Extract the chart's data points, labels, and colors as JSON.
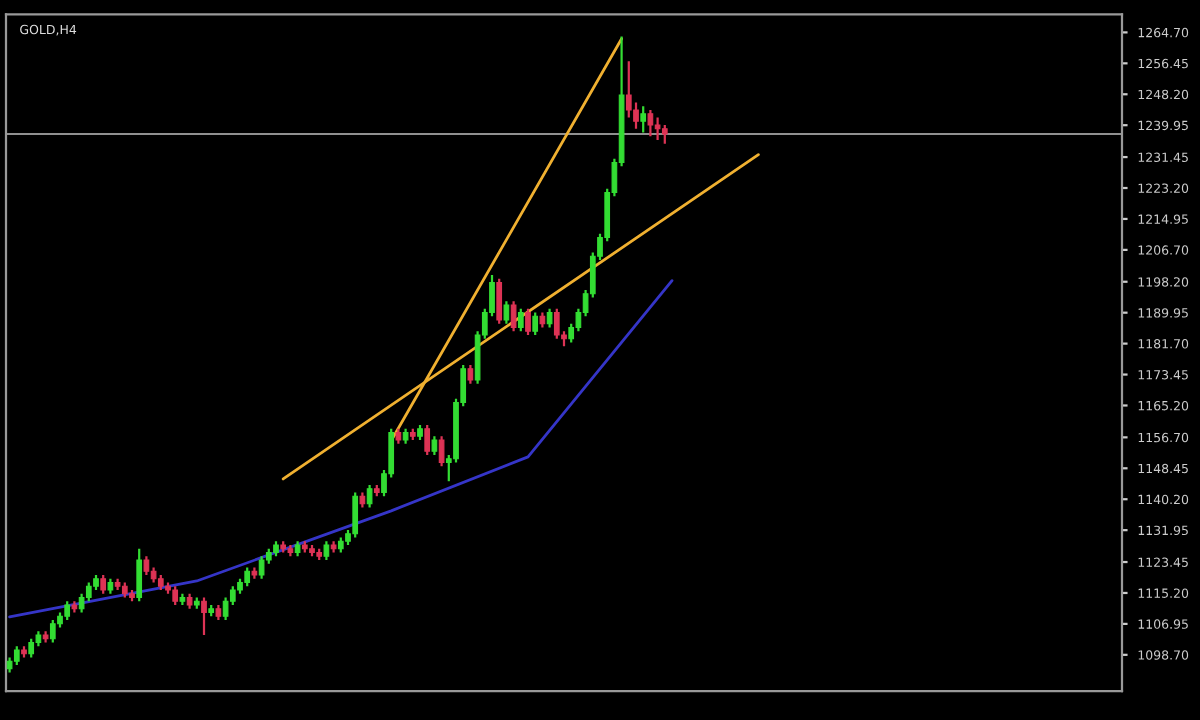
{
  "chart_data": {
    "type": "candlestick",
    "title": "GOLD,H4",
    "categories": [
      null,
      null,
      null,
      null,
      null,
      null,
      null,
      null,
      null,
      null,
      null,
      null,
      null,
      null,
      null,
      null,
      null,
      null,
      null,
      null,
      null,
      null,
      null,
      null,
      null,
      null,
      null,
      null,
      null,
      null,
      null,
      null,
      null,
      null,
      null,
      null,
      null,
      null,
      null,
      null,
      null,
      null,
      null,
      null,
      null,
      null,
      null,
      null,
      null,
      null,
      null,
      null,
      null,
      null,
      null,
      null,
      null,
      null,
      null,
      null,
      null,
      null,
      null,
      null,
      null,
      null,
      null,
      null,
      null,
      null,
      null,
      null,
      null,
      null,
      null,
      null,
      null,
      null,
      null,
      null,
      null,
      null,
      null,
      null,
      null,
      null,
      null,
      null,
      null,
      null,
      null,
      null,
      null,
      null,
      null,
      null,
      null,
      null,
      null,
      null,
      null,
      null,
      null,
      null,
      null,
      null,
      null,
      null,
      null,
      null,
      null,
      null,
      null,
      null,
      null,
      null,
      null,
      null,
      null,
      null,
      null,
      null,
      null,
      null,
      null,
      null,
      null,
      null,
      null,
      null,
      null,
      null,
      null,
      null,
      null,
      null,
      null,
      null,
      null,
      null,
      null,
      null,
      null,
      null,
      null,
      null,
      null,
      null,
      null,
      null,
      null,
      null,
      null,
      null,
      null
    ],
    "ohlc": [
      [
        1095,
        1098,
        1094,
        1097
      ],
      [
        1097,
        1101,
        1096,
        1100
      ],
      [
        1100,
        1101,
        1098,
        1099
      ],
      [
        1099,
        1103,
        1098,
        1102
      ],
      [
        1102,
        1105,
        1101,
        1104
      ],
      [
        1104,
        1105,
        1102,
        1103
      ],
      [
        1103,
        1108,
        1102,
        1107
      ],
      [
        1107,
        1110,
        1106,
        1109
      ],
      [
        1109,
        1113,
        1108,
        1112
      ],
      [
        1112,
        1113,
        1110,
        1111
      ],
      [
        1111,
        1115,
        1110,
        1114
      ],
      [
        1114,
        1118,
        1113,
        1117
      ],
      [
        1117,
        1120,
        1116,
        1119
      ],
      [
        1119,
        1120,
        1115,
        1116
      ],
      [
        1116,
        1119,
        1115,
        1118
      ],
      [
        1118,
        1119,
        1116,
        1117
      ],
      [
        1117,
        1118,
        1114,
        1115
      ],
      [
        1115,
        1116,
        1113,
        1114
      ],
      [
        1114,
        1127,
        1113,
        1124
      ],
      [
        1124,
        1125,
        1120,
        1121
      ],
      [
        1121,
        1122,
        1118,
        1119
      ],
      [
        1119,
        1120,
        1116,
        1117
      ],
      [
        1117,
        1118,
        1115,
        1116
      ],
      [
        1116,
        1117,
        1112,
        1113
      ],
      [
        1113,
        1115,
        1112,
        1114
      ],
      [
        1114,
        1115,
        1111,
        1112
      ],
      [
        1112,
        1114,
        1111,
        1113
      ],
      [
        1113,
        1114,
        1104,
        1110
      ],
      [
        1110,
        1112,
        1109,
        1111
      ],
      [
        1111,
        1112,
        1108,
        1109
      ],
      [
        1109,
        1114,
        1108,
        1113
      ],
      [
        1113,
        1117,
        1112,
        1116
      ],
      [
        1116,
        1119,
        1115,
        1118
      ],
      [
        1118,
        1122,
        1117,
        1121
      ],
      [
        1121,
        1122,
        1119,
        1120
      ],
      [
        1120,
        1125,
        1119,
        1124
      ],
      [
        1124,
        1127,
        1123,
        1126
      ],
      [
        1126,
        1129,
        1125,
        1128
      ],
      [
        1128,
        1129,
        1126,
        1127
      ],
      [
        1127,
        1128,
        1125,
        1126
      ],
      [
        1126,
        1129,
        1125,
        1128
      ],
      [
        1128,
        1129,
        1126,
        1127
      ],
      [
        1127,
        1128,
        1125,
        1126
      ],
      [
        1126,
        1127,
        1124,
        1125
      ],
      [
        1125,
        1129,
        1124,
        1128
      ],
      [
        1128,
        1129,
        1126,
        1127
      ],
      [
        1127,
        1130,
        1126,
        1129
      ],
      [
        1129,
        1132,
        1128,
        1131
      ],
      [
        1131,
        1142,
        1130,
        1141
      ],
      [
        1141,
        1142,
        1138,
        1139
      ],
      [
        1139,
        1144,
        1138,
        1143
      ],
      [
        1143,
        1144,
        1141,
        1142
      ],
      [
        1142,
        1148,
        1141,
        1147
      ],
      [
        1147,
        1159,
        1146,
        1158
      ],
      [
        1158,
        1159,
        1155,
        1156
      ],
      [
        1156,
        1159,
        1155,
        1158
      ],
      [
        1158,
        1159,
        1156,
        1157
      ],
      [
        1157,
        1160,
        1156,
        1159
      ],
      [
        1159,
        1160,
        1152,
        1153
      ],
      [
        1153,
        1157,
        1152,
        1156
      ],
      [
        1156,
        1157,
        1149,
        1150
      ],
      [
        1150,
        1152,
        1145,
        1151
      ],
      [
        1151,
        1167,
        1150,
        1166
      ],
      [
        1166,
        1176,
        1165,
        1175
      ],
      [
        1175,
        1176,
        1171,
        1172
      ],
      [
        1172,
        1185,
        1171,
        1184
      ],
      [
        1184,
        1191,
        1183,
        1190
      ],
      [
        1190,
        1200,
        1189,
        1198
      ],
      [
        1198,
        1199,
        1187,
        1188
      ],
      [
        1188,
        1193,
        1187,
        1192
      ],
      [
        1192,
        1193,
        1185,
        1186
      ],
      [
        1186,
        1191,
        1185,
        1190
      ],
      [
        1190,
        1191,
        1184,
        1185
      ],
      [
        1185,
        1190,
        1184,
        1189
      ],
      [
        1189,
        1190,
        1186,
        1187
      ],
      [
        1187,
        1191,
        1186,
        1190
      ],
      [
        1190,
        1191,
        1183,
        1184
      ],
      [
        1184,
        1185,
        1181,
        1183
      ],
      [
        1183,
        1187,
        1182,
        1186
      ],
      [
        1186,
        1191,
        1185,
        1190
      ],
      [
        1190,
        1196,
        1189,
        1195
      ],
      [
        1195,
        1206,
        1194,
        1205
      ],
      [
        1205,
        1211,
        1204,
        1210
      ],
      [
        1210,
        1223,
        1209,
        1222
      ],
      [
        1222,
        1231,
        1221,
        1230
      ],
      [
        1230,
        1263.6,
        1229,
        1248
      ],
      [
        1248,
        1257,
        1242,
        1244
      ],
      [
        1244,
        1246,
        1239,
        1241
      ],
      [
        1241,
        1245,
        1238,
        1243
      ],
      [
        1243,
        1244,
        1237,
        1240
      ],
      [
        1240,
        1242,
        1236,
        1239
      ],
      [
        1239,
        1240,
        1235,
        1237.6
      ],
      null,
      null,
      null,
      null,
      null,
      null,
      null,
      null,
      null,
      null,
      null,
      null,
      null,
      null,
      null,
      null,
      null,
      null,
      null,
      null,
      null,
      null,
      null,
      null,
      null,
      null,
      null,
      null,
      null,
      null,
      null,
      null,
      null,
      null,
      null,
      null,
      null,
      null,
      null,
      null,
      null,
      null,
      null,
      null,
      null,
      null,
      null,
      null,
      null,
      null,
      null,
      null,
      null,
      null,
      null,
      null,
      null,
      null,
      null,
      null,
      null,
      null,
      null
    ],
    "colors": [
      "#33dd33",
      "#33dd33",
      "#dd3355",
      "#33dd33",
      "#33dd33",
      "#dd3355",
      "#33dd33",
      "#33dd33",
      "#33dd33",
      "#dd3355",
      "#33dd33",
      "#33dd33",
      "#33dd33",
      "#dd3355",
      "#33dd33",
      "#dd3355",
      "#dd3355",
      "#dd3355",
      "#33dd33",
      "#dd3355",
      "#dd3355",
      "#dd3355",
      "#dd3355",
      "#dd3355",
      "#33dd33",
      "#dd3355",
      "#33dd33",
      "#dd3355",
      "#33dd33",
      "#dd3355",
      "#33dd33",
      "#33dd33",
      "#33dd33",
      "#33dd33",
      "#dd3355",
      "#33dd33",
      "#33dd33",
      "#33dd33",
      "#dd3355",
      "#dd3355",
      "#33dd33",
      "#dd3355",
      "#dd3355",
      "#dd3355",
      "#33dd33",
      "#dd3355",
      "#33dd33",
      "#33dd33",
      "#33dd33",
      "#dd3355",
      "#33dd33",
      "#dd3355",
      "#33dd33",
      "#33dd33",
      "#dd3355",
      "#33dd33",
      "#dd3355",
      "#33dd33",
      "#dd3355",
      "#33dd33",
      "#dd3355",
      "#33dd33",
      "#33dd33",
      "#33dd33",
      "#dd3355",
      "#33dd33",
      "#33dd33",
      "#33dd33",
      "#dd3355",
      "#33dd33",
      "#dd3355",
      "#33dd33",
      "#dd3355",
      "#33dd33",
      "#dd3355",
      "#33dd33",
      "#dd3355",
      "#dd3355",
      "#33dd33",
      "#33dd33",
      "#33dd33",
      "#33dd33",
      "#33dd33",
      "#33dd33",
      "#33dd33",
      "#33dd33",
      "#dd3355",
      "#dd3355",
      "#33dd33",
      "#dd3355",
      "#dd3355",
      "#dd3355",
      null,
      null,
      null,
      null,
      null,
      null,
      null,
      null,
      null,
      null,
      null,
      null,
      null,
      null,
      null,
      null,
      null,
      null,
      null,
      null,
      null,
      null,
      null,
      null,
      null,
      null,
      null,
      null,
      null,
      null,
      null,
      null,
      null,
      null,
      null,
      null,
      null,
      null,
      null,
      null,
      null,
      null,
      null,
      null,
      null,
      null,
      null,
      null,
      null,
      null,
      null,
      null,
      null,
      null,
      null,
      null,
      null,
      null,
      null,
      null,
      null,
      null,
      null
    ],
    "series": [
      {
        "type": "line",
        "color": "#f0b030",
        "values": [
          null,
          null,
          null,
          null,
          null,
          null,
          null,
          null,
          null,
          null,
          null,
          null,
          null,
          null,
          null,
          null,
          null,
          null,
          null,
          null,
          null,
          null,
          null,
          null,
          null,
          null,
          null,
          null,
          null,
          null,
          null,
          null,
          null,
          null,
          null,
          null,
          null,
          null,
          null,
          null,
          null,
          null,
          null,
          null,
          null,
          null,
          null,
          null,
          null,
          null,
          null,
          null,
          null,
          1155.8,
          null,
          null,
          null,
          null,
          null,
          null,
          null,
          null,
          null,
          null,
          null,
          null,
          null,
          null,
          null,
          null,
          null,
          null,
          null,
          null,
          null,
          null,
          null,
          null,
          null,
          null,
          null,
          null,
          null,
          null,
          null,
          1263.0,
          null,
          null,
          null,
          null,
          null,
          null,
          null,
          null,
          null,
          null,
          null,
          null,
          null,
          null,
          null,
          null,
          null,
          null,
          null,
          null,
          null,
          null,
          null,
          null,
          null,
          null,
          null,
          null,
          null,
          null,
          null,
          null,
          null,
          null,
          null,
          null,
          null,
          null,
          null,
          null,
          null,
          null,
          null,
          null,
          null,
          null,
          null,
          null,
          null,
          null,
          null,
          null,
          null,
          null,
          null,
          null,
          null,
          null,
          null,
          null,
          null,
          null,
          null,
          null,
          null,
          null,
          null,
          null,
          null
        ]
      },
      {
        "type": "line",
        "color": "#f0b030",
        "values": [
          null,
          null,
          null,
          null,
          null,
          null,
          null,
          null,
          null,
          null,
          null,
          null,
          null,
          null,
          null,
          null,
          null,
          null,
          null,
          null,
          null,
          null,
          null,
          null,
          null,
          null,
          null,
          null,
          null,
          null,
          null,
          null,
          null,
          null,
          null,
          null,
          null,
          null,
          1145.6,
          null,
          null,
          null,
          null,
          null,
          null,
          null,
          null,
          null,
          null,
          null,
          null,
          null,
          null,
          null,
          null,
          null,
          null,
          null,
          null,
          null,
          null,
          null,
          null,
          null,
          null,
          null,
          null,
          null,
          null,
          null,
          null,
          null,
          null,
          null,
          null,
          null,
          null,
          null,
          null,
          null,
          null,
          null,
          null,
          null,
          null,
          null,
          null,
          null,
          null,
          null,
          null,
          null,
          null,
          null,
          null,
          null,
          null,
          null,
          null,
          null,
          null,
          null,
          null,
          null,
          1232.1,
          null,
          null,
          null,
          null,
          null,
          null,
          null,
          null,
          null,
          null,
          null,
          null,
          null,
          null,
          null,
          null,
          null,
          null,
          null,
          null,
          null,
          null,
          null,
          null,
          null,
          null,
          null,
          null,
          null,
          null,
          null,
          null,
          null,
          null,
          null,
          null,
          null,
          null,
          null,
          null,
          null,
          null,
          null,
          null,
          null,
          null,
          null,
          null,
          null,
          null
        ]
      },
      {
        "type": "line",
        "color": "#3535c8",
        "values": [
          1108.8,
          null,
          null,
          null,
          null,
          null,
          null,
          null,
          null,
          null,
          null,
          null,
          null,
          null,
          null,
          null,
          null,
          null,
          null,
          null,
          null,
          null,
          null,
          null,
          null,
          null,
          1118.4,
          null,
          null,
          null,
          null,
          null,
          null,
          null,
          null,
          null,
          null,
          null,
          null,
          null,
          null,
          null,
          null,
          null,
          null,
          null,
          null,
          null,
          null,
          null,
          null,
          null,
          null,
          1137.1,
          null,
          null,
          null,
          null,
          null,
          null,
          null,
          null,
          null,
          null,
          null,
          null,
          null,
          null,
          null,
          null,
          null,
          null,
          1151.5,
          null,
          null,
          null,
          null,
          null,
          null,
          null,
          null,
          null,
          null,
          null,
          null,
          null,
          null,
          null,
          null,
          null,
          null,
          null,
          1198.5,
          null,
          null,
          null,
          null,
          null,
          null,
          null,
          null,
          null,
          null,
          null,
          null,
          null,
          null,
          null,
          null,
          null,
          null,
          null,
          null,
          null,
          null,
          null,
          null,
          null,
          null,
          null,
          null,
          null,
          null,
          null,
          null,
          null,
          null,
          null,
          null,
          null,
          null,
          null,
          null,
          null,
          null,
          null,
          null,
          null,
          null,
          null,
          null,
          null,
          null,
          null,
          null,
          null,
          null,
          null,
          null,
          null,
          null,
          null,
          null,
          null,
          null
        ]
      }
    ],
    "ref_lines": [
      {
        "axis": "y",
        "value": 1237.6,
        "color": "#909090"
      }
    ],
    "ylim": [
      1089,
      1269.5
    ],
    "yticks": [
      {
        "value": 1264.7,
        "label": "1264.70"
      },
      {
        "value": 1256.45,
        "label": "1256.45"
      },
      {
        "value": 1248.2,
        "label": "1248.20"
      },
      {
        "value": 1239.95,
        "label": "1239.95"
      },
      {
        "value": 1231.45,
        "label": "1231.45"
      },
      {
        "value": 1223.2,
        "label": "1223.20"
      },
      {
        "value": 1214.95,
        "label": "1214.95"
      },
      {
        "value": 1206.7,
        "label": "1206.70"
      },
      {
        "value": 1198.2,
        "label": "1198.20"
      },
      {
        "value": 1189.95,
        "label": "1189.95"
      },
      {
        "value": 1181.7,
        "label": "1181.70"
      },
      {
        "value": 1173.45,
        "label": "1173.45"
      },
      {
        "value": 1165.2,
        "label": "1165.20"
      },
      {
        "value": 1156.7,
        "label": "1156.70"
      },
      {
        "value": 1148.45,
        "label": "1148.45"
      },
      {
        "value": 1140.2,
        "label": "1140.20"
      },
      {
        "value": 1131.95,
        "label": "1131.95"
      },
      {
        "value": 1123.45,
        "label": "1123.45"
      },
      {
        "value": 1115.2,
        "label": "1115.20"
      },
      {
        "value": 1106.95,
        "label": "1106.95"
      },
      {
        "value": 1098.7,
        "label": "1098.70"
      }
    ],
    "tick_labels": "y",
    "grid": false,
    "legend": false
  }
}
